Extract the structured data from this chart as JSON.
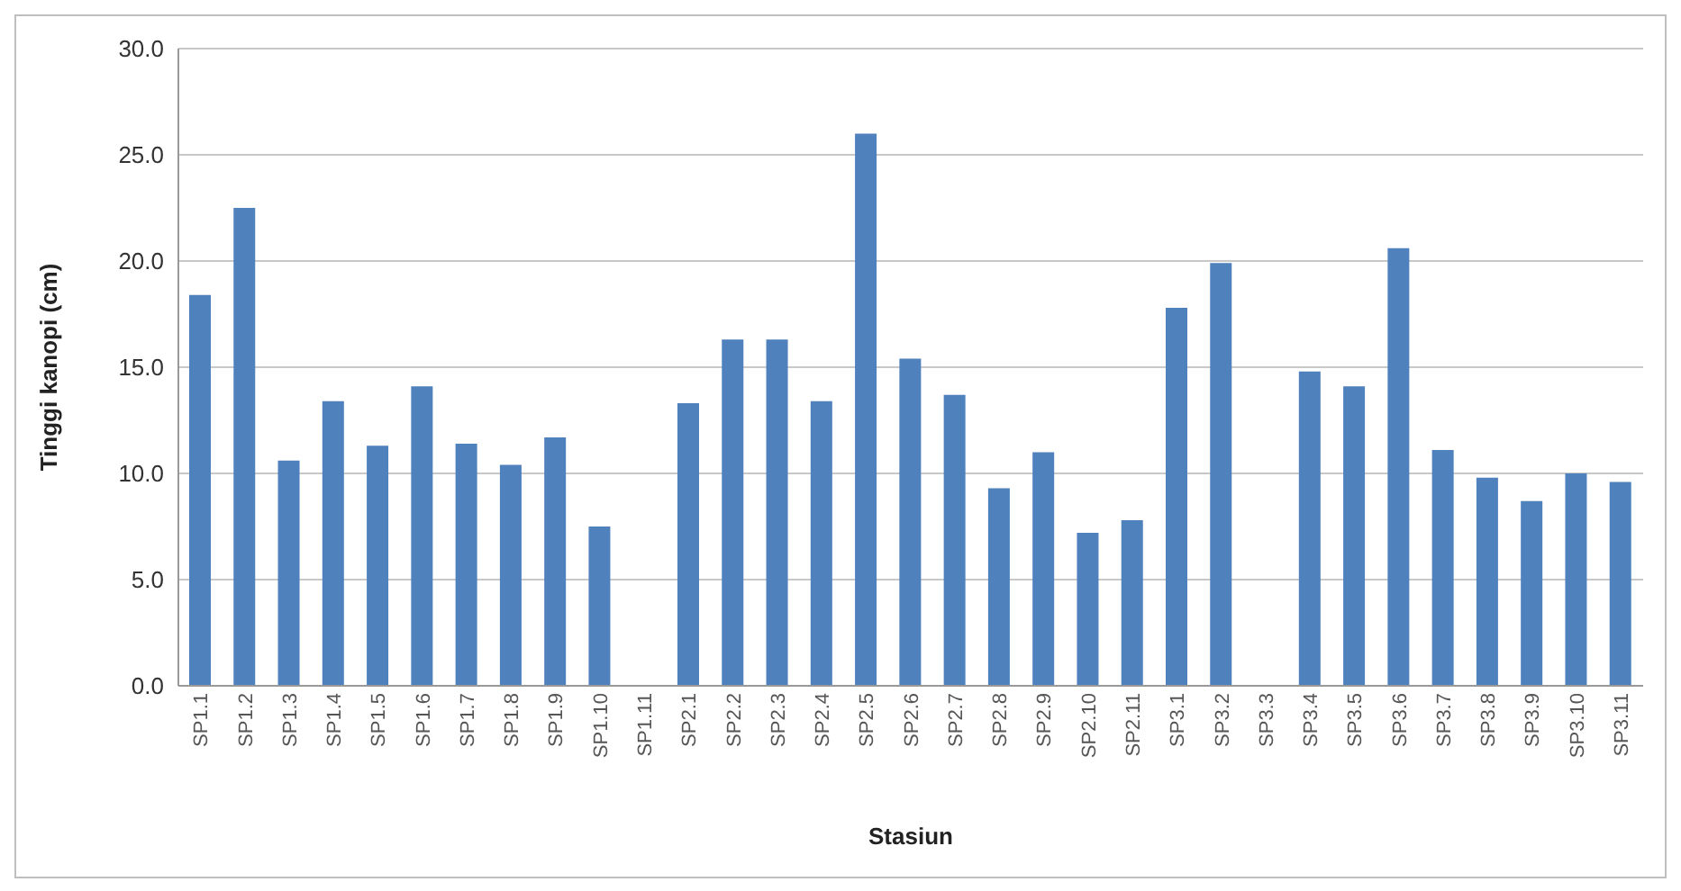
{
  "chart_data": {
    "type": "bar",
    "xlabel": "Stasiun",
    "ylabel": "Tinggi kanopi (cm)",
    "categories": [
      "SP1.1",
      "SP1.2",
      "SP1.3",
      "SP1.4",
      "SP1.5",
      "SP1.6",
      "SP1.7",
      "SP1.8",
      "SP1.9",
      "SP1.10",
      "SP1.11",
      "SP2.1",
      "SP2.2",
      "SP2.3",
      "SP2.4",
      "SP2.5",
      "SP2.6",
      "SP2.7",
      "SP2.8",
      "SP2.9",
      "SP2.10",
      "SP2.11",
      "SP3.1",
      "SP3.2",
      "SP3.3",
      "SP3.4",
      "SP3.5",
      "SP3.6",
      "SP3.7",
      "SP3.8",
      "SP3.9",
      "SP3.10",
      "SP3.11"
    ],
    "values": [
      18.4,
      22.5,
      10.6,
      13.4,
      11.3,
      14.1,
      11.4,
      10.4,
      11.7,
      7.5,
      null,
      13.3,
      16.3,
      16.3,
      13.4,
      26.0,
      15.4,
      13.7,
      9.3,
      11.0,
      7.2,
      7.8,
      17.8,
      19.9,
      null,
      14.8,
      14.1,
      20.6,
      11.1,
      9.8,
      8.7,
      10.0,
      9.6
    ],
    "color": "#4f81bd",
    "ylim": [
      0,
      30
    ],
    "yticks": [
      {
        "value": 0,
        "label": "0.0"
      },
      {
        "value": 5,
        "label": "5.0"
      },
      {
        "value": 10,
        "label": "10.0"
      },
      {
        "value": 15,
        "label": "15.0"
      },
      {
        "value": 20,
        "label": "20.0"
      },
      {
        "value": 25,
        "label": "25.0"
      },
      {
        "value": 30,
        "label": "30.0"
      }
    ],
    "grid": "y",
    "legend": false
  }
}
